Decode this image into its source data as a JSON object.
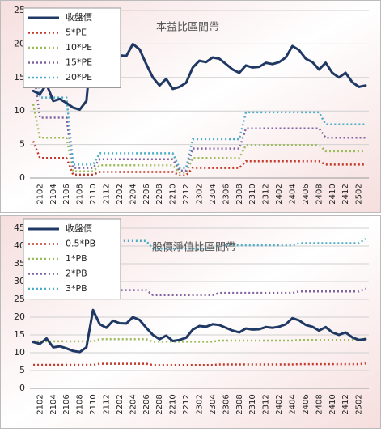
{
  "chart_data": [
    {
      "type": "line",
      "title": "本益比區間帶",
      "categories": [
        null,
        "2102",
        null,
        "2104",
        null,
        "2106",
        null,
        "2108",
        null,
        "2110",
        null,
        "2112",
        null,
        "2202",
        null,
        "2204",
        null,
        "2206",
        null,
        "2208",
        null,
        "2210",
        null,
        "2212",
        null,
        "2302",
        null,
        "2304",
        null,
        "2306",
        null,
        "2308",
        null,
        "2310",
        null,
        "2312",
        null,
        "2402",
        null,
        "2404",
        null,
        "2406",
        null,
        "2408",
        null,
        "2410",
        null,
        "2412",
        null,
        "2502",
        null
      ],
      "ylim": [
        0,
        25
      ],
      "yticks": [
        0,
        5,
        10,
        15,
        20,
        25
      ],
      "grid": true,
      "series": [
        {
          "name": "收盤價",
          "color": "#1f3864",
          "style": "solid",
          "values": [
            13,
            12.5,
            14,
            11.5,
            11.8,
            11.2,
            10.5,
            10.2,
            11.5,
            22,
            18,
            17,
            19,
            18.3,
            18.2,
            20,
            19.2,
            17,
            15,
            13.8,
            14.8,
            13.3,
            13.6,
            14.2,
            16.5,
            17.5,
            17.3,
            18,
            17.8,
            17,
            16.2,
            15.7,
            16.8,
            16.5,
            16.6,
            17.2,
            17,
            17.3,
            18,
            19.7,
            19.1,
            17.8,
            17.3,
            16.2,
            17.2,
            15.7,
            15,
            15.7,
            14.3,
            13.6,
            13.8
          ]
        },
        {
          "name": "5*PE",
          "color": "#c0392b",
          "style": "dotted",
          "values": [
            5.5,
            3,
            3,
            3,
            3,
            3,
            0.5,
            0.5,
            0.5,
            0.5,
            0.9,
            0.9,
            0.9,
            0.9,
            0.9,
            0.9,
            0.9,
            0.9,
            0.9,
            0.9,
            0.9,
            0.9,
            0.4,
            0.4,
            1.5,
            1.5,
            1.5,
            1.5,
            1.5,
            1.5,
            1.5,
            1.5,
            2.5,
            2.5,
            2.5,
            2.5,
            2.5,
            2.5,
            2.5,
            2.5,
            2.5,
            2.5,
            2.5,
            2.5,
            2,
            2,
            2,
            2,
            2,
            2,
            2
          ]
        },
        {
          "name": "10*PE",
          "color": "#9bbb59",
          "style": "dotted",
          "values": [
            11,
            6,
            6,
            6,
            6,
            6,
            1,
            1,
            1,
            1,
            1.9,
            1.9,
            1.9,
            1.9,
            1.9,
            1.9,
            1.9,
            1.9,
            1.9,
            1.9,
            1.9,
            1.9,
            0.8,
            0.8,
            3,
            3,
            3,
            3,
            3,
            3,
            3,
            3,
            4.9,
            4.9,
            4.9,
            4.9,
            4.9,
            4.9,
            4.9,
            4.9,
            4.9,
            4.9,
            4.9,
            4.9,
            4,
            4,
            4,
            4,
            4,
            4,
            4
          ]
        },
        {
          "name": "15*PE",
          "color": "#8064a2",
          "style": "dotted",
          "values": [
            16.5,
            9,
            9,
            9,
            9,
            9,
            1.5,
            1.5,
            1.5,
            1.5,
            2.8,
            2.8,
            2.8,
            2.8,
            2.8,
            2.8,
            2.8,
            2.8,
            2.8,
            2.8,
            2.8,
            2.8,
            1.1,
            1.1,
            4.4,
            4.4,
            4.4,
            4.4,
            4.4,
            4.4,
            4.4,
            4.4,
            7.4,
            7.4,
            7.4,
            7.4,
            7.4,
            7.4,
            7.4,
            7.4,
            7.4,
            7.4,
            7.4,
            7.4,
            6,
            6,
            6,
            6,
            6,
            6,
            6
          ]
        },
        {
          "name": "20*PE",
          "color": "#4bacc6",
          "style": "dotted",
          "values": [
            22,
            12,
            12,
            12,
            12,
            12,
            2,
            2,
            2,
            2,
            3.7,
            3.7,
            3.7,
            3.7,
            3.7,
            3.7,
            3.7,
            3.7,
            3.7,
            3.7,
            3.7,
            3.7,
            1.5,
            1.5,
            5.8,
            5.8,
            5.8,
            5.8,
            5.8,
            5.8,
            5.8,
            5.8,
            9.8,
            9.8,
            9.8,
            9.8,
            9.8,
            9.8,
            9.8,
            9.8,
            9.8,
            9.8,
            9.8,
            9.8,
            8,
            8,
            8,
            8,
            8,
            8,
            8
          ]
        }
      ]
    },
    {
      "type": "line",
      "title": "股價淨值比區間帶",
      "categories": [
        null,
        "2102",
        null,
        "2104",
        null,
        "2106",
        null,
        "2108",
        null,
        "2110",
        null,
        "2112",
        null,
        "2202",
        null,
        "2204",
        null,
        "2206",
        null,
        "2208",
        null,
        "2210",
        null,
        "2212",
        null,
        "2302",
        null,
        "2304",
        null,
        "2306",
        null,
        "2308",
        null,
        "2310",
        null,
        "2312",
        null,
        "2402",
        null,
        "2404",
        null,
        "2406",
        null,
        "2408",
        null,
        "2410",
        null,
        "2412",
        null,
        "2502",
        null
      ],
      "ylim": [
        0,
        45
      ],
      "yticks": [
        0,
        5,
        10,
        15,
        20,
        25,
        30,
        35,
        40,
        45
      ],
      "grid": true,
      "series": [
        {
          "name": "收盤價",
          "color": "#1f3864",
          "style": "solid",
          "values": [
            13,
            12.5,
            14,
            11.5,
            11.8,
            11.2,
            10.5,
            10.2,
            11.5,
            22,
            18,
            17,
            19,
            18.3,
            18.2,
            20,
            19.2,
            17,
            15,
            13.8,
            14.8,
            13.3,
            13.6,
            14.2,
            16.5,
            17.5,
            17.3,
            18,
            17.8,
            17,
            16.2,
            15.7,
            16.8,
            16.5,
            16.6,
            17.2,
            17,
            17.3,
            18,
            19.7,
            19.1,
            17.8,
            17.3,
            16.2,
            17.2,
            15.7,
            15,
            15.7,
            14.3,
            13.6,
            13.8
          ]
        },
        {
          "name": "0.5*PB",
          "color": "#c0392b",
          "style": "dotted",
          "values": [
            6.6,
            6.6,
            6.6,
            6.6,
            6.6,
            6.6,
            6.6,
            6.6,
            6.6,
            6.6,
            6.9,
            6.9,
            6.9,
            6.9,
            6.9,
            6.9,
            6.9,
            6.9,
            6.55,
            6.55,
            6.55,
            6.55,
            6.55,
            6.55,
            6.55,
            6.55,
            6.55,
            6.55,
            6.7,
            6.7,
            6.7,
            6.7,
            6.7,
            6.7,
            6.7,
            6.7,
            6.7,
            6.7,
            6.7,
            6.7,
            6.8,
            6.8,
            6.8,
            6.8,
            6.8,
            6.8,
            6.8,
            6.8,
            6.8,
            6.8,
            7
          ]
        },
        {
          "name": "1*PB",
          "color": "#9bbb59",
          "style": "dotted",
          "values": [
            13.2,
            13.2,
            13.2,
            13.2,
            13.2,
            13.2,
            13.2,
            13.2,
            13.2,
            13.2,
            13.8,
            13.8,
            13.8,
            13.8,
            13.8,
            13.8,
            13.8,
            13.8,
            13.1,
            13.1,
            13.1,
            13.1,
            13.1,
            13.1,
            13.1,
            13.1,
            13.1,
            13.1,
            13.4,
            13.4,
            13.4,
            13.4,
            13.4,
            13.4,
            13.4,
            13.4,
            13.4,
            13.4,
            13.4,
            13.4,
            13.6,
            13.6,
            13.6,
            13.6,
            13.6,
            13.6,
            13.6,
            13.6,
            13.6,
            13.6,
            14
          ]
        },
        {
          "name": "2*PB",
          "color": "#8064a2",
          "style": "dotted",
          "values": [
            26.4,
            26.4,
            26.4,
            26.4,
            26.4,
            26.4,
            26.4,
            26.4,
            26.4,
            26.4,
            27.6,
            27.6,
            27.6,
            27.6,
            27.6,
            27.6,
            27.6,
            27.6,
            26.2,
            26.2,
            26.2,
            26.2,
            26.2,
            26.2,
            26.2,
            26.2,
            26.2,
            26.2,
            26.8,
            26.8,
            26.8,
            26.8,
            26.8,
            26.8,
            26.8,
            26.8,
            26.8,
            26.8,
            26.8,
            26.8,
            27.2,
            27.2,
            27.2,
            27.2,
            27.2,
            27.2,
            27.2,
            27.2,
            27.2,
            27.2,
            28
          ]
        },
        {
          "name": "3*PB",
          "color": "#4bacc6",
          "style": "dotted",
          "values": [
            39.6,
            39.6,
            39.6,
            39.6,
            39.6,
            39.6,
            39.6,
            39.6,
            39.6,
            39.6,
            41.4,
            41.4,
            41.4,
            41.4,
            41.4,
            41.4,
            41.4,
            41.4,
            39.3,
            39.3,
            39.3,
            39.3,
            39.3,
            39.3,
            39.3,
            39.3,
            39.3,
            39.3,
            40.2,
            40.2,
            40.2,
            40.2,
            40.2,
            40.2,
            40.2,
            40.2,
            40.2,
            40.2,
            40.2,
            40.2,
            40.8,
            40.8,
            40.8,
            40.8,
            40.8,
            40.8,
            40.8,
            40.8,
            40.8,
            40.8,
            42
          ]
        }
      ]
    }
  ]
}
